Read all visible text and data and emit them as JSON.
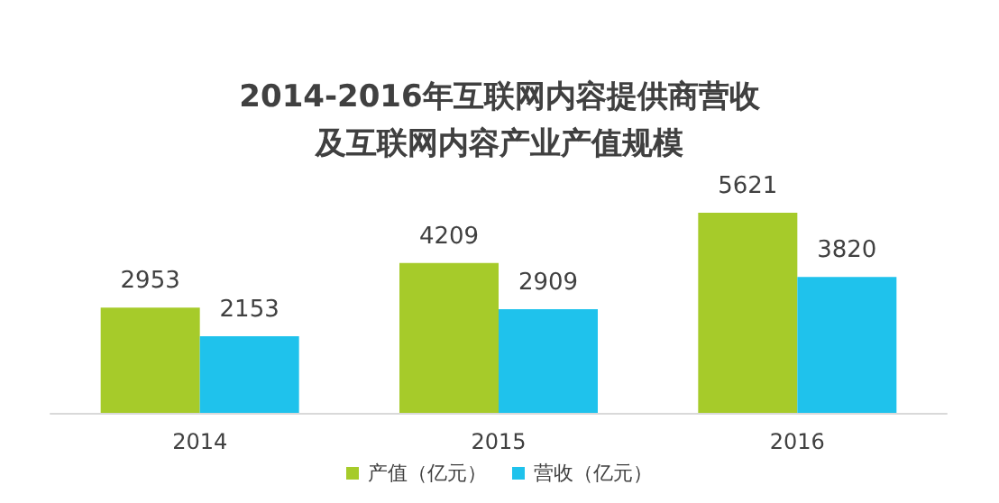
{
  "chart_data": {
    "type": "bar",
    "title": "2014-2016年互联网内容提供商营收及互联网内容产业产值规模",
    "categories": [
      "2014",
      "2015",
      "2016"
    ],
    "series": [
      {
        "name": "产值（亿元）",
        "color": "#a6cb2a",
        "values": [
          2953,
          4209,
          5621
        ]
      },
      {
        "name": "营收（亿元）",
        "color": "#1fc2ec",
        "values": [
          2153,
          2909,
          3820
        ]
      }
    ],
    "data_labels": true,
    "legend": "bottom",
    "grid": false
  }
}
